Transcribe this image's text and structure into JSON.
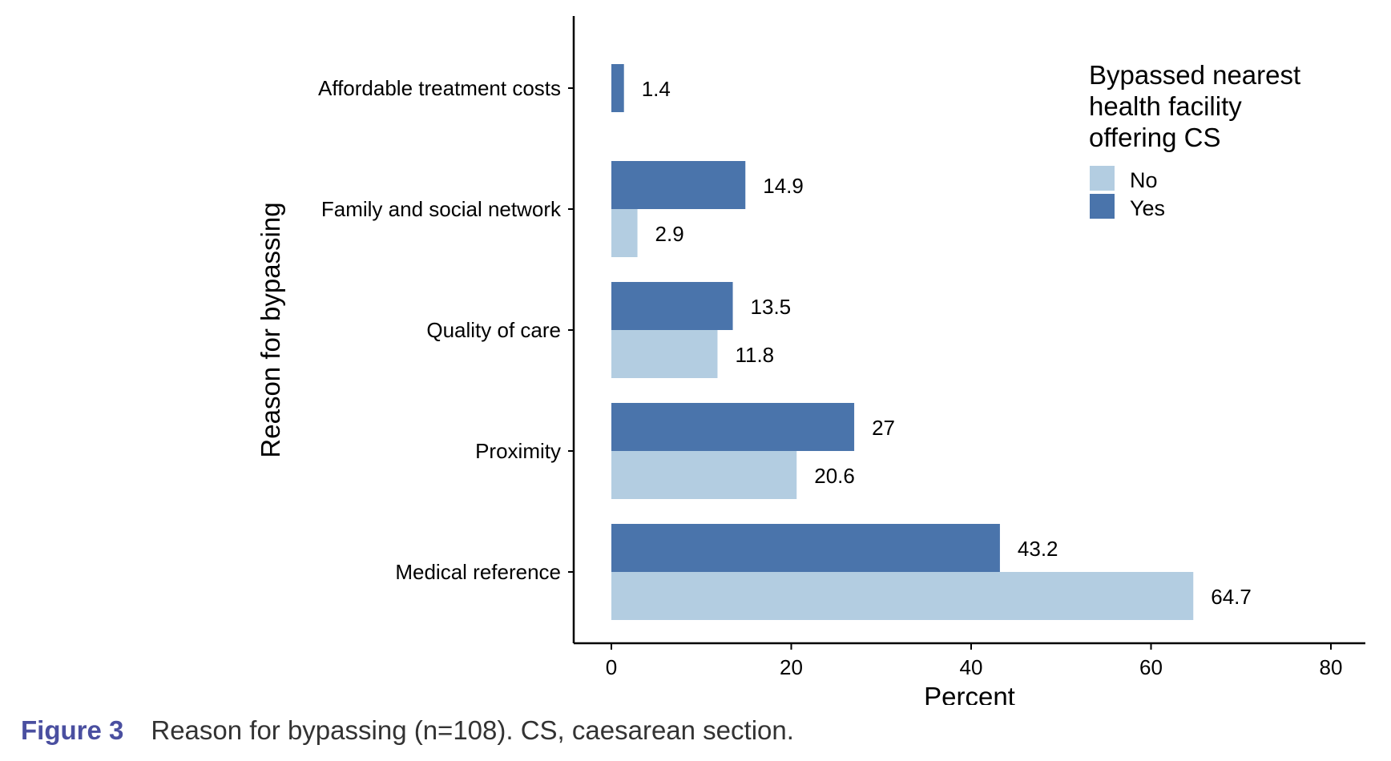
{
  "chart_data": {
    "type": "bar",
    "orientation": "horizontal",
    "categories": [
      "Affordable treatment costs",
      "Family and social network",
      "Quality of care",
      "Proximity",
      "Medical reference"
    ],
    "series": [
      {
        "name": "Yes",
        "values": [
          1.4,
          14.9,
          13.5,
          27,
          43.2
        ],
        "color": "#4a74ab"
      },
      {
        "name": "No",
        "values": [
          null,
          2.9,
          11.8,
          20.6,
          64.7
        ],
        "color": "#b3cde1"
      }
    ],
    "data_labels": {
      "Yes": [
        "1.4",
        "14.9",
        "13.5",
        "27",
        "43.2"
      ],
      "No": [
        "",
        "2.9",
        "11.8",
        "20.6",
        "64.7"
      ]
    },
    "xlabel": "Percent",
    "ylabel": "Reason for bypassing",
    "xlim": [
      0,
      80
    ],
    "xticks": [
      "0",
      "20",
      "40",
      "60",
      "80"
    ],
    "grid": false,
    "legend": {
      "title_lines": [
        "Bypassed nearest",
        "health facility",
        "offering CS"
      ],
      "entries": [
        "No",
        "Yes"
      ],
      "position": "top-right"
    }
  },
  "caption": {
    "label": "Figure 3",
    "text": "Reason for bypassing (n=108). CS, caesarean section."
  }
}
